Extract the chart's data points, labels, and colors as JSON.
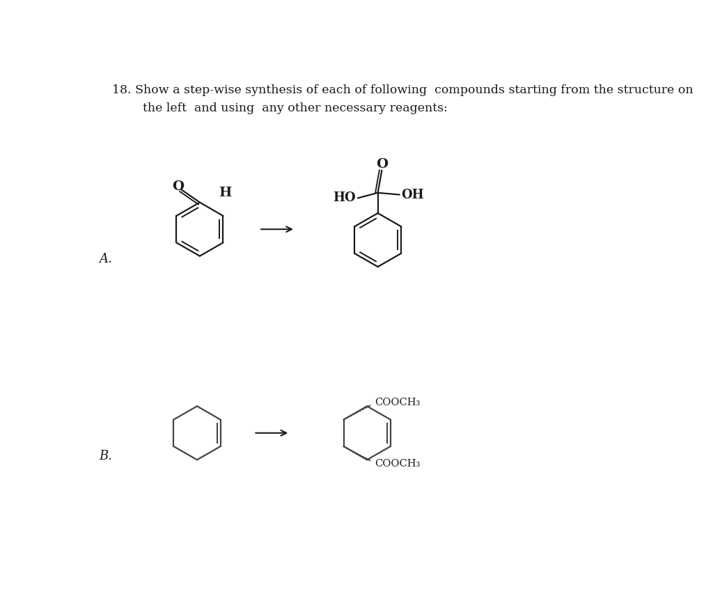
{
  "title_line1": "18. Show a step-wise synthesis of each of following  compounds starting from the structure on",
  "title_line2": "        the left  and using  any other necessary reagents:",
  "label_A": "A.",
  "label_B": "B.",
  "bg_color": "#ffffff",
  "text_color": "#1a1a1a",
  "line_color": "#1a1a1a",
  "font_size_title": 12.5,
  "font_size_labels": 13,
  "font_size_chem": 12,
  "font_size_atom": 13
}
